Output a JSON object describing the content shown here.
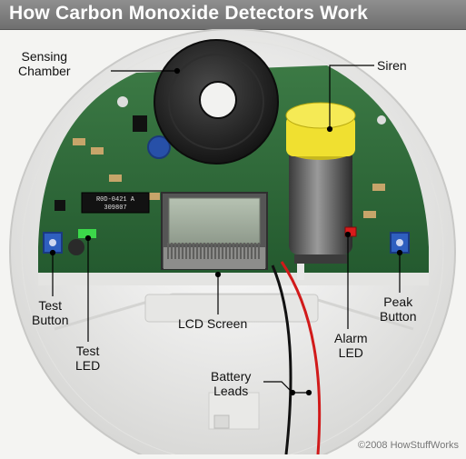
{
  "title": "How Carbon Monoxide Detectors Work",
  "labels": {
    "sensing_chamber": [
      "Sensing",
      "Chamber"
    ],
    "siren": "Siren",
    "test_button": [
      "Test",
      "Button"
    ],
    "test_led": [
      "Test",
      "LED"
    ],
    "lcd_screen": "LCD Screen",
    "alarm_led": [
      "Alarm",
      "LED"
    ],
    "peak_button": [
      "Peak",
      "Button"
    ],
    "battery_leads": [
      "Battery",
      "Leads"
    ]
  },
  "chip_text": [
    "R0D-0421 A",
    "309807"
  ],
  "credit": "©2008 HowStuffWorks",
  "colors": {
    "header": "#7c7c7c",
    "board": "#2f6b3a",
    "siren_cap": "#f0e030",
    "led_alarm": "#d81b1b",
    "led_test": "#3cd84a",
    "button": "#2f5fbf"
  }
}
